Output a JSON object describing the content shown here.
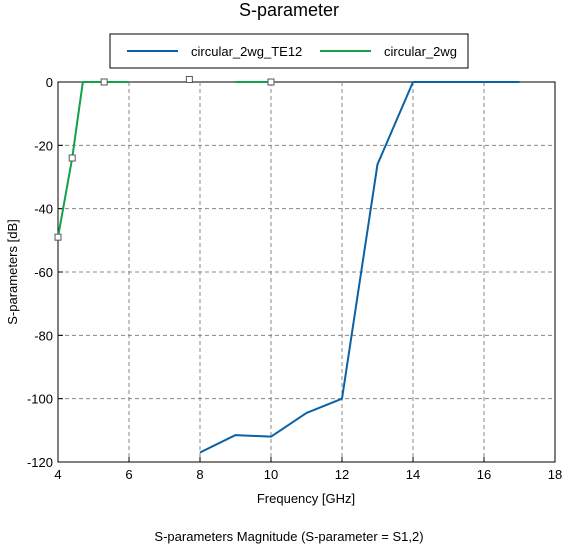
{
  "chart_data": {
    "type": "line",
    "title": "S-parameter",
    "xlabel": "Frequency [GHz]",
    "ylabel": "S-parameters [dB]",
    "footer": "S-parameters Magnitude (S-parameter = S1,2)",
    "xlim": [
      4,
      18
    ],
    "ylim": [
      -120,
      0
    ],
    "x_ticks": [
      4,
      6,
      8,
      10,
      12,
      14,
      16,
      18
    ],
    "y_ticks": [
      0,
      -20,
      -40,
      -60,
      -80,
      -100,
      -120
    ],
    "grid": true,
    "legend_position": "top-center",
    "series": [
      {
        "name": "circular_2wg_TE12",
        "color": "#0a62a6",
        "marker": "none",
        "x": [
          8,
          9,
          10,
          11,
          12,
          13,
          14,
          17
        ],
        "y": [
          -117,
          -111.5,
          -112,
          -104.5,
          -100,
          -26,
          0,
          0
        ]
      },
      {
        "name": "circular_2wg",
        "color": "#12a04a",
        "marker": "square",
        "x": [
          4,
          4.4,
          4.7,
          5.3,
          6
        ],
        "y": [
          -49,
          -24,
          0,
          0,
          0
        ],
        "segments": [
          {
            "x": [
              9,
              10
            ],
            "y": [
              0,
              0
            ]
          }
        ],
        "marker_points": [
          {
            "x": 4,
            "y": -49
          },
          {
            "x": 4.4,
            "y": -24
          },
          {
            "x": 5.3,
            "y": 0
          },
          {
            "x": 7.7,
            "y": 0.8
          },
          {
            "x": 10,
            "y": 0
          }
        ]
      }
    ]
  }
}
